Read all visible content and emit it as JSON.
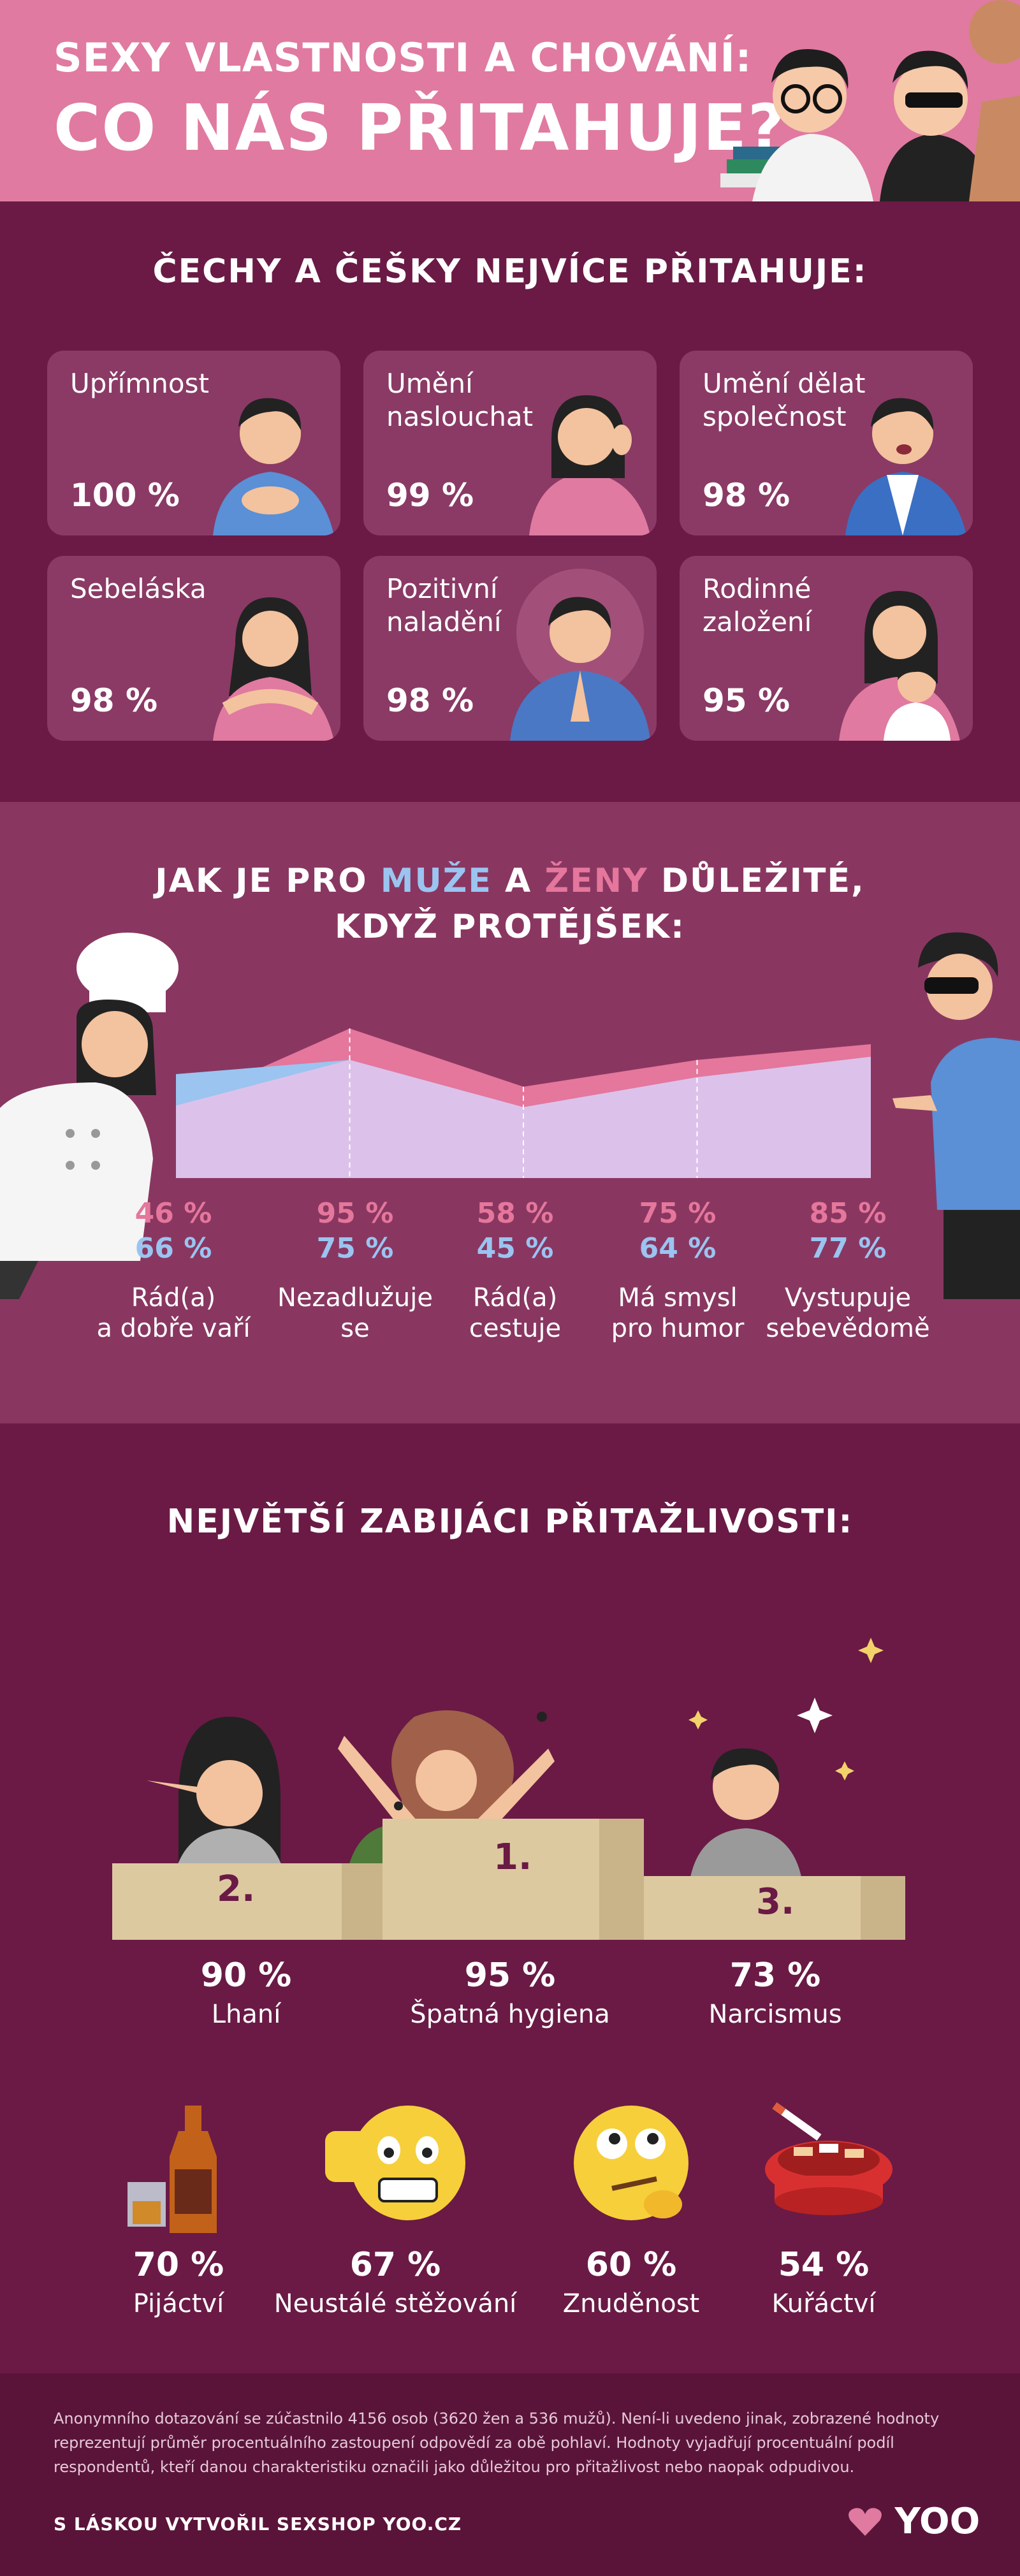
{
  "header": {
    "title_line1": "SEXY VLASTNOSTI A CHOVÁNÍ:",
    "title_line2": "CO NÁS PŘITAHUJE?"
  },
  "section1": {
    "heading": "ČECHY A ČEŠKY NEJVÍCE PŘITAHUJE:",
    "cards": [
      {
        "label": "Upřímnost",
        "pct": "100 %",
        "icon": "man-hands-on-heart-icon"
      },
      {
        "label": "Umění\nnaslouchat",
        "pct": "99 %",
        "icon": "woman-listening-icon"
      },
      {
        "label": "Umění dělat\nspolečnost",
        "pct": "98 %",
        "icon": "man-talking-icon"
      },
      {
        "label": "Sebeláska",
        "pct": "98 %",
        "icon": "woman-self-hug-icon"
      },
      {
        "label": "Pozitivní\nnaladění",
        "pct": "98 %",
        "icon": "man-meditating-icon"
      },
      {
        "label": "Rodinné\nzaložení",
        "pct": "95 %",
        "icon": "mother-child-icon"
      }
    ]
  },
  "section2": {
    "heading_part1": "JAK JE PRO ",
    "heading_men": "MUŽE",
    "heading_part2": " A ",
    "heading_women": "ŽENY",
    "heading_part3": " DŮLEŽITÉ,",
    "heading_line2": "KDYŽ PROTĚJŠEK:",
    "colors": {
      "women": "#e5769c",
      "men": "#9bc4f0"
    }
  },
  "chart_data": {
    "type": "area",
    "categories": [
      "Rád(a)\na dobře vaří",
      "Nezadlužuje\nse",
      "Rád(a)\ncestuje",
      "Má smysl\npro humor",
      "Vystupuje\nsebevědomě"
    ],
    "series": [
      {
        "name": "ŽENY",
        "values": [
          46,
          95,
          58,
          75,
          85
        ],
        "labels": [
          "46 %",
          "95 %",
          "58 %",
          "75 %",
          "85 %"
        ],
        "color": "#e5769c"
      },
      {
        "name": "MUŽE",
        "values": [
          66,
          75,
          45,
          64,
          77
        ],
        "labels": [
          "66 %",
          "75 %",
          "45 %",
          "64 %",
          "77 %"
        ],
        "color": "#9bc4f0"
      }
    ],
    "ylim": [
      0,
      100
    ]
  },
  "section3": {
    "heading": "NEJVĚTŠÍ ZABIJÁCI PŘITAŽLIVOSTI:",
    "podium": [
      {
        "rank": "2.",
        "pct": "90 %",
        "label": "Lhaní"
      },
      {
        "rank": "1.",
        "pct": "95 %",
        "label": "Špatná hygiena"
      },
      {
        "rank": "3.",
        "pct": "73 %",
        "label": "Narcismus"
      }
    ],
    "others": [
      {
        "pct": "70 %",
        "label": "Pijáctví",
        "icon": "whiskey-bottle-icon"
      },
      {
        "pct": "67 %",
        "label": "Neustálé stěžování",
        "icon": "angry-thumbs-down-emoji-icon"
      },
      {
        "pct": "60 %",
        "label": "Znuděnost",
        "icon": "bored-emoji-icon"
      },
      {
        "pct": "54 %",
        "label": "Kuřáctví",
        "icon": "ashtray-cigarettes-icon"
      }
    ]
  },
  "footer": {
    "note": "Anonymního dotazování se zúčastnilo 4156 osob (3620 žen a 536 mužů). Není-li uvedeno jinak, zobrazené hodnoty reprezentují průměr procentuálního zastoupení odpovědí za obě pohlaví. Hodnoty vyjadřují procentuální podíl respondentů, kteří danou charakteristiku označili jako důležitou pro přitažlivost nebo naopak odpudivou.",
    "credit": "S LÁSKOU VYTVOŘIL SEXSHOP YOO.CZ",
    "logo": "YOO"
  }
}
